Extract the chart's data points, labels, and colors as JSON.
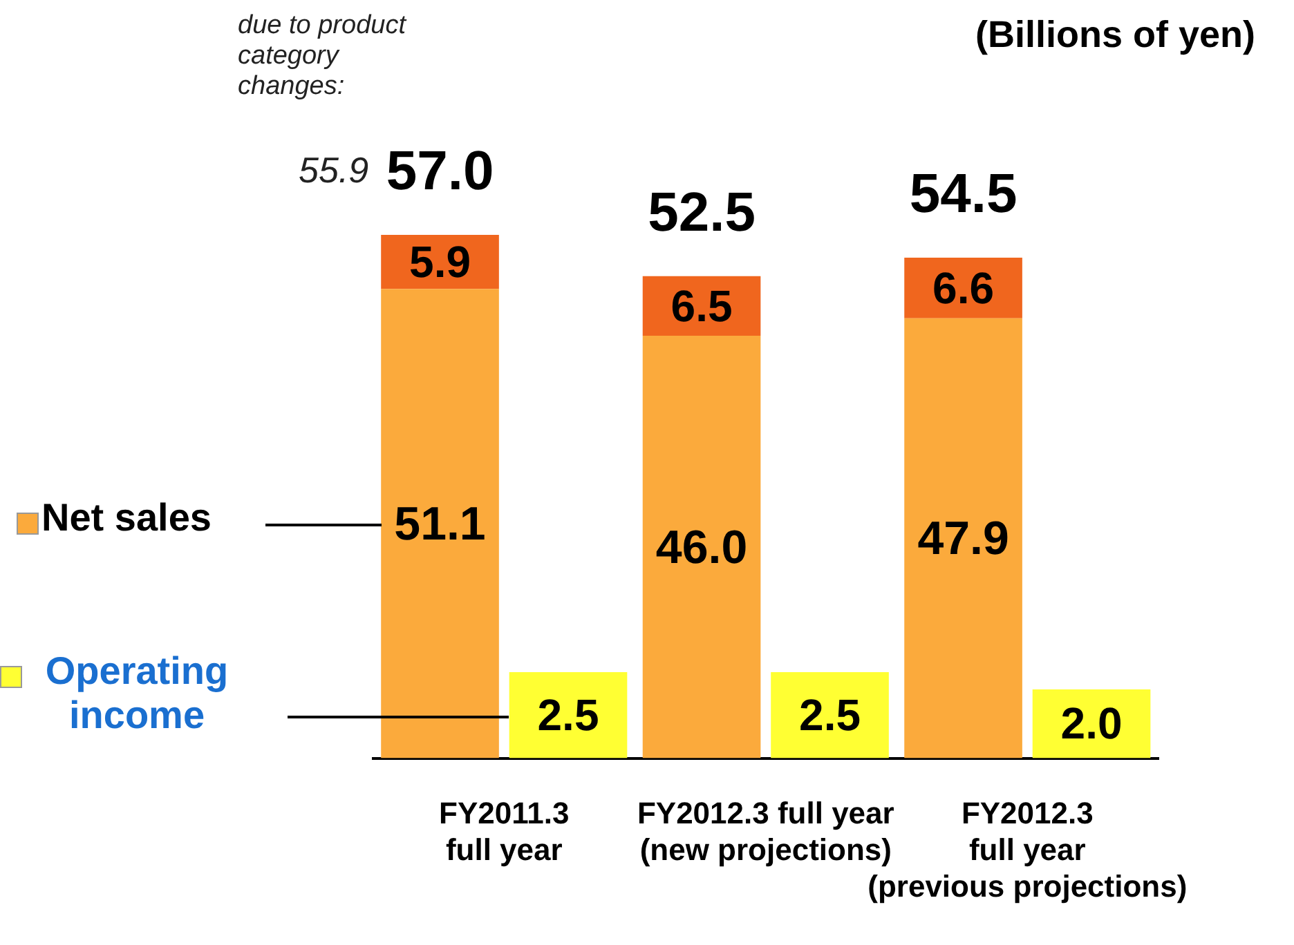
{
  "chart_data": {
    "type": "bar",
    "stacked": true,
    "ylabel": "(Billions of yen)",
    "categories": [
      "FY2011.3\nfull year",
      "FY2012.3 full year\n(new projections)",
      "FY2012.3\nfull year\n(previous projections)"
    ],
    "series": [
      {
        "name": "Net sales",
        "color": "#fbaa3c",
        "values": [
          51.1,
          46.0,
          47.9
        ],
        "value_labels": [
          "51.1",
          "46.0",
          "47.9"
        ]
      },
      {
        "color": "#f0661e",
        "values": [
          5.9,
          6.5,
          6.6
        ],
        "value_labels": [
          "5.9",
          "6.5",
          "6.6"
        ]
      },
      {
        "name": "Operating income",
        "color": "#ffff33",
        "values": [
          2.5,
          2.5,
          2.0
        ],
        "value_labels": [
          "2.5",
          "2.5",
          "2.0"
        ],
        "axis": "y2"
      }
    ],
    "totals": [
      "57.0",
      "52.5",
      "54.5"
    ],
    "grid": false,
    "legend": "left",
    "annotations": [
      "due to product\ncategory\nchanges:",
      "55.9"
    ]
  }
}
